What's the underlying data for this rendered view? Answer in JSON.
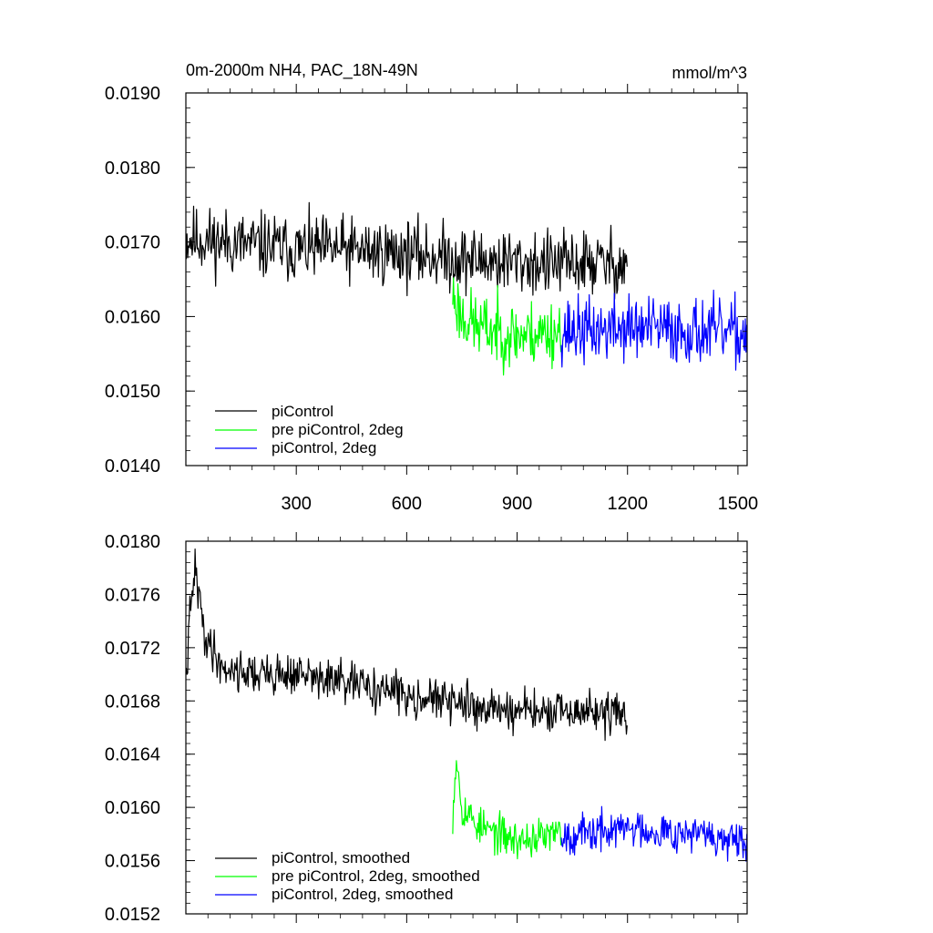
{
  "colors": {
    "black": "#000000",
    "green": "#00ff00",
    "blue": "#0000ff"
  },
  "chart_data": [
    {
      "type": "line",
      "title": "0m-2000m NH4, PAC_18N-49N",
      "units": "mmol/m^3",
      "xlim": [
        0,
        1525
      ],
      "ylim": [
        0.014,
        0.019
      ],
      "x_ticks": [
        300,
        600,
        900,
        1200,
        1500
      ],
      "x_tick_labels": [
        "300",
        "600",
        "900",
        "1200",
        "1500"
      ],
      "y_ticks": [
        0.014,
        0.015,
        0.016,
        0.017,
        0.018,
        0.019
      ],
      "y_tick_labels": [
        "0.0140",
        "0.0150",
        "0.0160",
        "0.0170",
        "0.0180",
        "0.0190"
      ],
      "legend_position": "bottom-left",
      "series": [
        {
          "name": "piControl",
          "color": "black",
          "x": [
            1,
            100,
            200,
            300,
            400,
            500,
            600,
            700,
            800,
            900,
            1000,
            1100,
            1200
          ],
          "y": [
            0.01705,
            0.017,
            0.01695,
            0.0169,
            0.0169,
            0.01688,
            0.01685,
            0.0168,
            0.01675,
            0.01673,
            0.0167,
            0.01672,
            0.0167
          ],
          "noise": 0.0004,
          "seed": 11
        },
        {
          "name": "pre piControl, 2deg",
          "color": "green",
          "x": [
            725,
            750,
            800,
            900,
            1020
          ],
          "y": [
            0.0163,
            0.016,
            0.01585,
            0.01575,
            0.0158
          ],
          "noise": 0.0004,
          "seed": 23
        },
        {
          "name": "piControl, 2deg",
          "color": "blue",
          "x": [
            1020,
            1100,
            1200,
            1300,
            1400,
            1525
          ],
          "y": [
            0.01582,
            0.0158,
            0.01585,
            0.01582,
            0.0158,
            0.01575
          ],
          "noise": 0.0004,
          "seed": 37
        }
      ]
    },
    {
      "type": "line",
      "xlim": [
        0,
        1525
      ],
      "ylim": [
        0.0152,
        0.018
      ],
      "x_ticks": [
        300,
        600,
        900,
        1200,
        1500
      ],
      "x_tick_labels": [],
      "y_ticks": [
        0.0152,
        0.0156,
        0.016,
        0.0164,
        0.0168,
        0.0172,
        0.0176,
        0.018
      ],
      "y_tick_labels": [
        "0.0152",
        "0.0156",
        "0.0160",
        "0.0164",
        "0.0168",
        "0.0172",
        "0.0176",
        "0.0180"
      ],
      "legend_position": "bottom-left",
      "series": [
        {
          "name": "piControl, smoothed",
          "color": "black",
          "x": [
            1,
            10,
            25,
            50,
            100,
            200,
            300,
            400,
            500,
            600,
            700,
            800,
            900,
            1000,
            1100,
            1200
          ],
          "y": [
            0.01695,
            0.0174,
            0.0178,
            0.0173,
            0.01705,
            0.017,
            0.017,
            0.01695,
            0.0169,
            0.01685,
            0.0168,
            0.01675,
            0.01673,
            0.0167,
            0.01672,
            0.0167
          ],
          "noise": 0.00014,
          "seed": 41
        },
        {
          "name": "pre piControl, 2deg, smoothed",
          "color": "green",
          "x": [
            725,
            735,
            750,
            800,
            900,
            1020
          ],
          "y": [
            0.01595,
            0.0164,
            0.016,
            0.01585,
            0.01575,
            0.0158
          ],
          "noise": 0.00013,
          "seed": 53
        },
        {
          "name": "piControl, 2deg, smoothed",
          "color": "blue",
          "x": [
            1020,
            1100,
            1200,
            1300,
            1400,
            1525
          ],
          "y": [
            0.0158,
            0.0158,
            0.01585,
            0.01582,
            0.0158,
            0.0157
          ],
          "noise": 0.00013,
          "seed": 67
        }
      ]
    }
  ]
}
